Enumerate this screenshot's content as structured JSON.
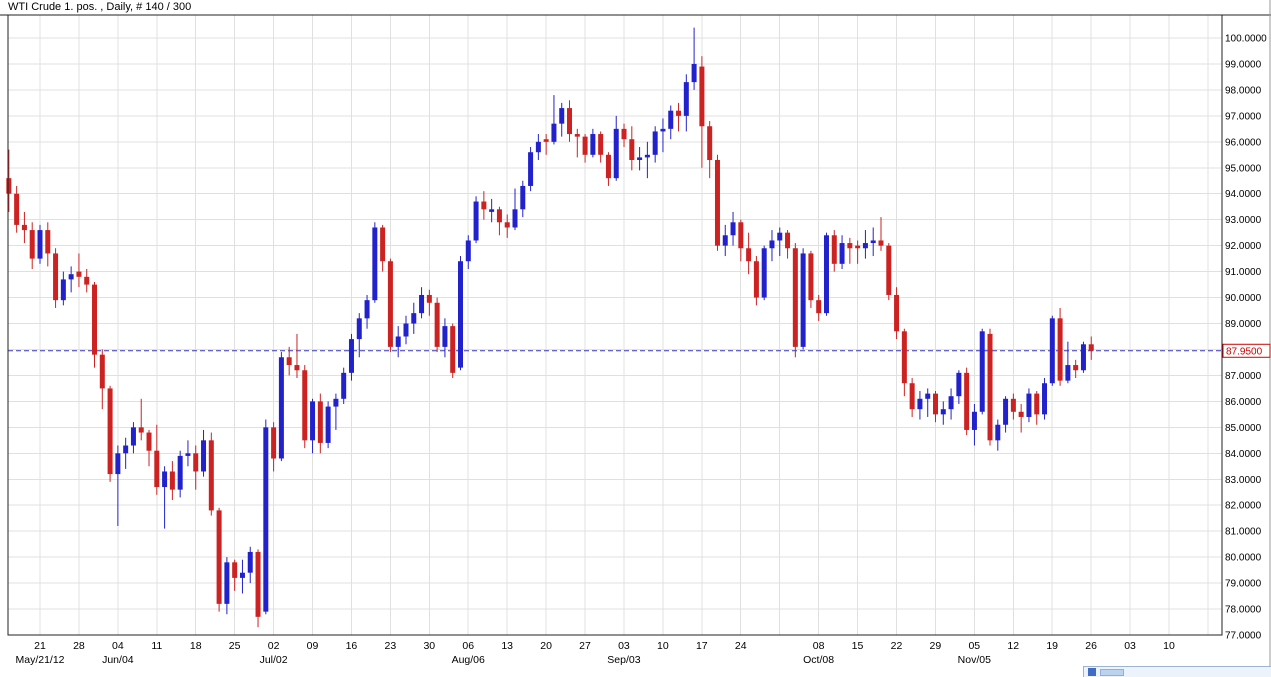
{
  "window": {
    "title": "WTI Crude 1. pos. , Daily, # 140 / 300"
  },
  "chart_data": {
    "type": "candlestick",
    "title": "WTI Crude 1. pos. , Daily, # 140 / 300",
    "series_name": "WTI Crude 1. pos.",
    "timeframe": "Daily",
    "bar_counter": "# 140 / 300",
    "last_price": 87.95,
    "last_price_label": "87.9500",
    "price_line": {
      "value": 87.95,
      "style": "dashed",
      "color": "#3333bb"
    },
    "grid": true,
    "legend": "none",
    "y_axis": {
      "side": "right",
      "min": 77.0,
      "max": 100.0,
      "step": 1.0,
      "tick_labels": [
        "100.0000",
        "99.0000",
        "98.0000",
        "97.0000",
        "96.0000",
        "95.0000",
        "94.0000",
        "93.0000",
        "92.0000",
        "91.0000",
        "90.0000",
        "89.0000",
        "88.0000",
        "87.0000",
        "86.0000",
        "85.0000",
        "84.0000",
        "83.0000",
        "82.0000",
        "81.0000",
        "80.0000",
        "79.0000",
        "78.0000",
        "77.0000"
      ]
    },
    "x_axis": {
      "tick_labels": [
        "21",
        "28",
        "04",
        "11",
        "18",
        "25",
        "02",
        "09",
        "16",
        "23",
        "30",
        "06",
        "13",
        "20",
        "27",
        "03",
        "10",
        "17",
        "24",
        "",
        "08",
        "15",
        "22",
        "29",
        "05",
        "12",
        "19",
        "26",
        "03",
        "10"
      ],
      "month_labels": [
        {
          "week": 0,
          "label": "May/21/12"
        },
        {
          "week": 2,
          "label": "Jun/04"
        },
        {
          "week": 6,
          "label": "Jul/02"
        },
        {
          "week": 11,
          "label": "Aug/06"
        },
        {
          "week": 15,
          "label": "Sep/03"
        },
        {
          "week": 20,
          "label": "Oct/08"
        },
        {
          "week": 24,
          "label": "Nov/05"
        }
      ]
    },
    "colors": {
      "up": "#2222cc",
      "down": "#cc2222",
      "grid": "#e0e0e0",
      "background": "#ffffff",
      "axis_text": "#000000",
      "price_tag": "#cc0000",
      "border": "#222222"
    },
    "candles_ohlc": [
      [
        94.6,
        95.7,
        93.3,
        94.0
      ],
      [
        94.0,
        94.3,
        92.5,
        92.8
      ],
      [
        92.8,
        93.3,
        92.1,
        92.6
      ],
      [
        92.6,
        92.9,
        91.1,
        91.5
      ],
      [
        91.5,
        92.8,
        91.3,
        92.6
      ],
      [
        92.6,
        92.9,
        91.2,
        91.7
      ],
      [
        91.7,
        91.9,
        89.6,
        89.9
      ],
      [
        89.9,
        91.0,
        89.7,
        90.7
      ],
      [
        90.7,
        91.2,
        90.2,
        90.9
      ],
      [
        91.0,
        91.7,
        90.4,
        90.8
      ],
      [
        90.8,
        91.1,
        90.2,
        90.5
      ],
      [
        90.5,
        90.6,
        87.3,
        87.8
      ],
      [
        87.8,
        88.0,
        85.7,
        86.5
      ],
      [
        86.5,
        86.6,
        82.9,
        83.2
      ],
      [
        83.2,
        84.3,
        81.2,
        84.0
      ],
      [
        84.0,
        84.6,
        83.4,
        84.3
      ],
      [
        84.3,
        85.2,
        84.0,
        85.0
      ],
      [
        85.0,
        86.1,
        84.5,
        84.8
      ],
      [
        84.8,
        84.9,
        83.5,
        84.1
      ],
      [
        84.1,
        85.1,
        82.4,
        82.7
      ],
      [
        82.7,
        83.5,
        81.1,
        83.3
      ],
      [
        83.3,
        83.7,
        82.2,
        82.6
      ],
      [
        82.6,
        84.1,
        82.3,
        83.9
      ],
      [
        83.9,
        84.5,
        83.5,
        84.0
      ],
      [
        84.0,
        84.3,
        82.6,
        83.3
      ],
      [
        83.3,
        84.9,
        83.1,
        84.5
      ],
      [
        84.5,
        84.8,
        81.6,
        81.8
      ],
      [
        81.8,
        81.9,
        77.9,
        78.2
      ],
      [
        78.2,
        80.0,
        77.8,
        79.8
      ],
      [
        79.8,
        79.9,
        78.7,
        79.2
      ],
      [
        79.2,
        79.9,
        78.6,
        79.4
      ],
      [
        79.4,
        80.4,
        79.0,
        80.2
      ],
      [
        80.2,
        80.3,
        77.3,
        77.7
      ],
      [
        77.9,
        85.3,
        77.8,
        85.0
      ],
      [
        85.0,
        85.2,
        83.3,
        83.8
      ],
      [
        83.8,
        87.9,
        83.7,
        87.7
      ],
      [
        87.7,
        88.1,
        87.0,
        87.4
      ],
      [
        87.4,
        88.6,
        86.9,
        87.2
      ],
      [
        87.2,
        87.4,
        84.2,
        84.5
      ],
      [
        84.5,
        86.1,
        84.0,
        86.0
      ],
      [
        86.0,
        86.3,
        84.0,
        84.4
      ],
      [
        84.4,
        86.0,
        84.2,
        85.8
      ],
      [
        85.8,
        86.3,
        84.9,
        86.1
      ],
      [
        86.1,
        87.3,
        85.9,
        87.1
      ],
      [
        87.1,
        88.6,
        86.8,
        88.4
      ],
      [
        88.4,
        89.4,
        87.7,
        89.2
      ],
      [
        89.2,
        90.1,
        88.8,
        89.9
      ],
      [
        89.9,
        92.9,
        89.8,
        92.7
      ],
      [
        92.7,
        92.8,
        91.0,
        91.4
      ],
      [
        91.4,
        91.5,
        87.9,
        88.1
      ],
      [
        88.1,
        88.9,
        87.7,
        88.5
      ],
      [
        88.5,
        89.3,
        88.2,
        89.0
      ],
      [
        89.0,
        89.8,
        88.6,
        89.4
      ],
      [
        89.4,
        90.4,
        89.2,
        90.1
      ],
      [
        90.1,
        90.3,
        89.3,
        89.8
      ],
      [
        89.8,
        90.0,
        87.9,
        88.1
      ],
      [
        88.1,
        89.2,
        87.7,
        88.9
      ],
      [
        88.9,
        89.0,
        86.9,
        87.1
      ],
      [
        87.3,
        91.6,
        87.2,
        91.4
      ],
      [
        91.4,
        92.4,
        91.1,
        92.2
      ],
      [
        92.2,
        93.9,
        92.1,
        93.7
      ],
      [
        93.7,
        94.1,
        93.0,
        93.4
      ],
      [
        93.3,
        93.8,
        92.9,
        93.4
      ],
      [
        93.4,
        93.5,
        92.4,
        92.9
      ],
      [
        92.9,
        93.2,
        92.3,
        92.7
      ],
      [
        92.7,
        94.2,
        92.6,
        93.4
      ],
      [
        93.4,
        94.5,
        93.1,
        94.3
      ],
      [
        94.3,
        95.8,
        94.1,
        95.6
      ],
      [
        95.6,
        96.3,
        95.3,
        96.0
      ],
      [
        96.1,
        96.3,
        95.5,
        96.0
      ],
      [
        96.0,
        97.8,
        95.9,
        96.7
      ],
      [
        96.7,
        97.5,
        96.2,
        97.3
      ],
      [
        97.3,
        97.6,
        96.0,
        96.3
      ],
      [
        96.3,
        96.5,
        95.4,
        96.2
      ],
      [
        96.2,
        96.3,
        95.2,
        95.5
      ],
      [
        95.5,
        96.5,
        95.4,
        96.3
      ],
      [
        96.3,
        96.4,
        95.2,
        95.5
      ],
      [
        95.5,
        95.6,
        94.3,
        94.6
      ],
      [
        94.6,
        97.0,
        94.5,
        96.5
      ],
      [
        96.5,
        96.7,
        95.8,
        96.1
      ],
      [
        96.1,
        96.6,
        94.9,
        95.3
      ],
      [
        95.3,
        95.8,
        94.9,
        95.4
      ],
      [
        95.4,
        96.0,
        94.6,
        95.5
      ],
      [
        95.5,
        96.6,
        95.2,
        96.4
      ],
      [
        96.4,
        96.9,
        95.6,
        96.5
      ],
      [
        96.5,
        97.4,
        96.1,
        97.2
      ],
      [
        97.2,
        97.5,
        96.4,
        97.0
      ],
      [
        97.0,
        98.6,
        96.4,
        98.3
      ],
      [
        98.3,
        100.4,
        98.0,
        99.0
      ],
      [
        98.9,
        99.3,
        95.0,
        96.6
      ],
      [
        96.6,
        96.8,
        94.6,
        95.3
      ],
      [
        95.3,
        95.5,
        91.8,
        92.0
      ],
      [
        92.0,
        92.8,
        91.6,
        92.4
      ],
      [
        92.4,
        93.3,
        92.0,
        92.9
      ],
      [
        92.9,
        93.0,
        91.4,
        91.9
      ],
      [
        91.9,
        92.5,
        90.9,
        91.4
      ],
      [
        91.4,
        91.6,
        89.7,
        90.0
      ],
      [
        90.0,
        92.0,
        89.9,
        91.9
      ],
      [
        91.9,
        92.6,
        91.4,
        92.2
      ],
      [
        92.2,
        92.7,
        91.6,
        92.5
      ],
      [
        92.5,
        92.6,
        91.5,
        91.9
      ],
      [
        91.9,
        92.1,
        87.7,
        88.1
      ],
      [
        88.1,
        91.9,
        88.0,
        91.7
      ],
      [
        91.7,
        91.8,
        89.6,
        89.9
      ],
      [
        89.9,
        90.1,
        89.1,
        89.4
      ],
      [
        89.4,
        92.5,
        89.3,
        92.4
      ],
      [
        92.4,
        92.6,
        91.0,
        91.3
      ],
      [
        91.3,
        92.4,
        91.1,
        92.1
      ],
      [
        92.1,
        92.3,
        91.3,
        91.9
      ],
      [
        92.0,
        92.2,
        91.3,
        91.9
      ],
      [
        91.9,
        92.6,
        91.5,
        92.1
      ],
      [
        92.1,
        92.7,
        91.6,
        92.2
      ],
      [
        92.2,
        93.1,
        91.8,
        92.0
      ],
      [
        92.0,
        92.1,
        89.9,
        90.1
      ],
      [
        90.1,
        90.4,
        88.4,
        88.7
      ],
      [
        88.7,
        88.8,
        86.2,
        86.7
      ],
      [
        86.7,
        86.9,
        85.4,
        85.7
      ],
      [
        85.7,
        86.4,
        85.3,
        86.1
      ],
      [
        86.1,
        86.5,
        85.4,
        86.3
      ],
      [
        86.3,
        86.4,
        85.2,
        85.5
      ],
      [
        85.5,
        86.0,
        85.1,
        85.7
      ],
      [
        85.7,
        86.5,
        85.3,
        86.2
      ],
      [
        86.2,
        87.2,
        85.9,
        87.1
      ],
      [
        87.1,
        87.3,
        84.7,
        84.9
      ],
      [
        84.9,
        85.9,
        84.3,
        85.6
      ],
      [
        85.6,
        88.8,
        85.5,
        88.7
      ],
      [
        88.6,
        88.8,
        84.3,
        84.5
      ],
      [
        84.5,
        85.3,
        84.1,
        85.1
      ],
      [
        85.1,
        86.2,
        84.8,
        86.1
      ],
      [
        86.1,
        86.3,
        85.3,
        85.6
      ],
      [
        85.6,
        85.9,
        84.8,
        85.4
      ],
      [
        85.4,
        86.5,
        85.2,
        86.3
      ],
      [
        86.3,
        86.4,
        85.1,
        85.5
      ],
      [
        85.5,
        86.9,
        85.3,
        86.7
      ],
      [
        86.7,
        89.3,
        86.6,
        89.2
      ],
      [
        89.2,
        89.6,
        86.6,
        86.8
      ],
      [
        86.8,
        88.3,
        86.7,
        87.4
      ],
      [
        87.4,
        87.6,
        86.9,
        87.2
      ],
      [
        87.2,
        88.3,
        87.1,
        88.2
      ],
      [
        88.2,
        88.5,
        87.6,
        87.95
      ]
    ]
  },
  "overlay_widget": {
    "colors": {
      "background": "#edf3fb",
      "border": "#9db4d0",
      "icon": "#3f6cc4",
      "bar": "#bcd3ef"
    }
  }
}
